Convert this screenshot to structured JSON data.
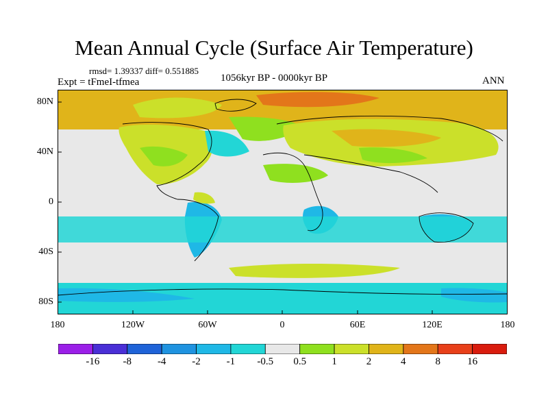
{
  "title": "Mean Annual Cycle (Surface Air Temperature)",
  "stats_text": "rmsd= 1.39337 diff= 0.551885",
  "experiment_text": "Expt = tFmeI-tfmea",
  "period_text": "1056kyr BP - 0000kyr BP",
  "season": "ANN",
  "y_ticks": [
    "80N",
    "40N",
    "0",
    "40S",
    "80S"
  ],
  "x_ticks": [
    "180",
    "120W",
    "60W",
    "0",
    "60E",
    "120E",
    "180"
  ],
  "colorbar": {
    "labels": [
      "-16",
      "-8",
      "-4",
      "-2",
      "-1",
      "-0.5",
      "0.5",
      "1",
      "2",
      "4",
      "8",
      "16"
    ],
    "colors": [
      "#9b1fe8",
      "#4a2fd6",
      "#1f63d8",
      "#1f93e0",
      "#1fb8e6",
      "#22d6d6",
      "#e8e8e8",
      "#8fe01f",
      "#cbe02a",
      "#e0b41a",
      "#e3761a",
      "#e8401a",
      "#d91c0e"
    ]
  }
}
